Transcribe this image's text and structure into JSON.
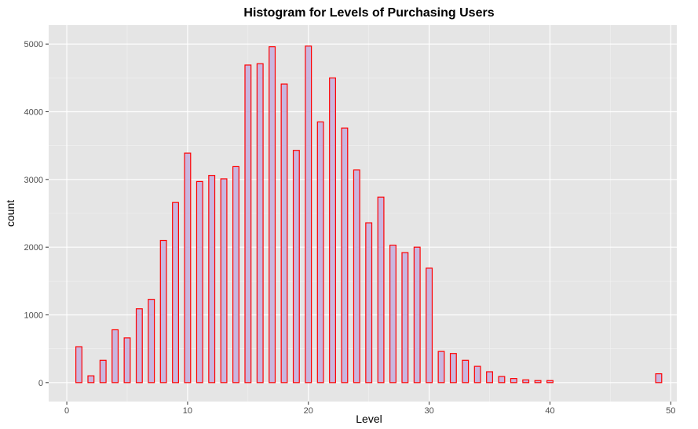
{
  "chart_data": {
    "type": "bar",
    "title": "Histogram for Levels of Purchasing Users",
    "xlabel": "Level",
    "ylabel": "count",
    "xlim": [
      -1.5,
      50.5
    ],
    "ylim": [
      -280,
      5280
    ],
    "x_ticks": [
      0,
      10,
      20,
      30,
      40,
      50
    ],
    "y_ticks": [
      0,
      1000,
      2000,
      3000,
      4000,
      5000
    ],
    "x_minor_ticks": [
      5,
      15,
      25,
      35,
      45
    ],
    "y_minor_ticks": [
      500,
      1500,
      2500,
      3500,
      4500
    ],
    "grid": true,
    "legend": "none",
    "colors": {
      "panel_background": "#e5e5e5",
      "grid_major": "#ffffff",
      "grid_minor": "#f2f2f2",
      "bar_fill": "#c9b6df",
      "bar_outline": "#ff0000",
      "tick_label": "#4d4d4d",
      "tick_mark": "#333333"
    },
    "bar_width": 0.5,
    "x": [
      1,
      2,
      3,
      4,
      5,
      6,
      7,
      8,
      9,
      10,
      11,
      12,
      13,
      14,
      15,
      16,
      17,
      18,
      19,
      20,
      21,
      22,
      23,
      24,
      25,
      26,
      27,
      28,
      29,
      30,
      31,
      32,
      33,
      34,
      35,
      36,
      37,
      38,
      39,
      40,
      41,
      42,
      43,
      44,
      45,
      46,
      47,
      48,
      49
    ],
    "values": [
      530,
      100,
      330,
      780,
      660,
      1090,
      1230,
      2100,
      2660,
      3390,
      2970,
      3060,
      3010,
      3190,
      4690,
      4710,
      4960,
      4410,
      3430,
      4970,
      3850,
      4500,
      3760,
      3140,
      2360,
      2740,
      2030,
      1920,
      2000,
      1690,
      460,
      430,
      330,
      240,
      160,
      90,
      60,
      40,
      30,
      30,
      0,
      0,
      0,
      0,
      0,
      0,
      0,
      0,
      130
    ]
  }
}
